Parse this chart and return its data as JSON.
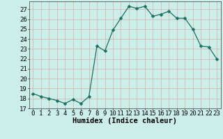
{
  "x": [
    0,
    1,
    2,
    3,
    4,
    5,
    6,
    7,
    8,
    9,
    10,
    11,
    12,
    13,
    14,
    15,
    16,
    17,
    18,
    19,
    20,
    21,
    22,
    23
  ],
  "y": [
    18.5,
    18.2,
    18.0,
    17.8,
    17.5,
    17.9,
    17.5,
    18.2,
    23.3,
    22.8,
    24.9,
    26.1,
    27.3,
    27.1,
    27.3,
    26.3,
    26.5,
    26.8,
    26.1,
    26.1,
    25.0,
    23.3,
    23.2,
    22.0
  ],
  "line_color": "#1a7060",
  "marker": "D",
  "marker_size": 2.5,
  "bg_color": "#cceee8",
  "grid_color": "#b0d8d0",
  "xlabel": "Humidex (Indice chaleur)",
  "xlim": [
    -0.5,
    23.5
  ],
  "ylim": [
    17,
    27.8
  ],
  "yticks": [
    17,
    18,
    19,
    20,
    21,
    22,
    23,
    24,
    25,
    26,
    27
  ],
  "xticks": [
    0,
    1,
    2,
    3,
    4,
    5,
    6,
    7,
    8,
    9,
    10,
    11,
    12,
    13,
    14,
    15,
    16,
    17,
    18,
    19,
    20,
    21,
    22,
    23
  ],
  "tick_label_fontsize": 6.5,
  "xlabel_fontsize": 7.5,
  "axis_color": "#555555"
}
